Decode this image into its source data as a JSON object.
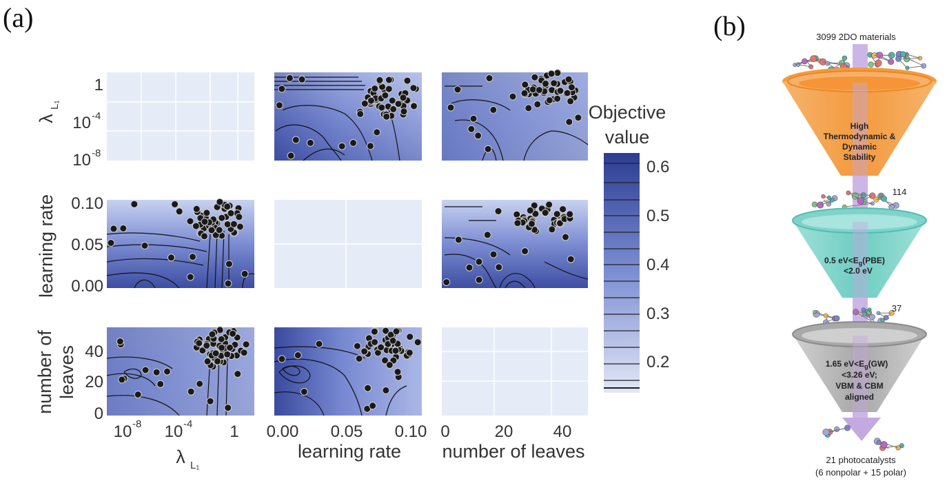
{
  "panels": {
    "a_label": "(a)",
    "b_label": "(b)"
  },
  "chart_data": {
    "type": "heatmap",
    "title": "",
    "params": [
      "λ_L1",
      "learning rate",
      "number of leaves"
    ],
    "y_labels": {
      "row0_main": "λ",
      "row0_sub": "L₁",
      "row1": "learning rate",
      "row2_line1": "number of",
      "row2_line2": "leaves"
    },
    "x_labels": {
      "col0_main": "λ",
      "col0_sub": "L₁",
      "col1": "learning rate",
      "col2": "number of leaves"
    },
    "ticks": {
      "lambda": [
        "1",
        "10",
        "-4",
        "10",
        "-8"
      ],
      "lambda_x": [
        "10",
        "-8",
        "10",
        "-4",
        "1"
      ],
      "learning_rate": [
        "0.10",
        "0.05",
        "0.00"
      ],
      "learning_rate_x": [
        "0.00",
        "0.05",
        "0.10"
      ],
      "leaves_y": [
        "40",
        "20",
        "0"
      ],
      "leaves_x": [
        "0",
        "20",
        "40"
      ]
    },
    "colorbar": {
      "title_line1": "Objective",
      "title_line2": "value",
      "ticks": [
        "0.6",
        "0.5",
        "0.4",
        "0.3",
        "0.2"
      ],
      "range": [
        0.15,
        0.63
      ]
    },
    "grid": "on",
    "colors": {
      "high": "#2f3f96",
      "mid": "#6f80cc",
      "low": "#dde4f5",
      "empty": "#e6ecf7",
      "point": "#1a1a1a"
    }
  },
  "funnel": {
    "top_label": "3099 2DO materials",
    "stage1": {
      "line1": "High",
      "line2": "Thermodynamic &",
      "line3": "Dynamic",
      "line4": "Stability",
      "color": "#f4a85a"
    },
    "count2": "114",
    "stage2": {
      "line1": "0.5 eV<E",
      "sub1": "g",
      "line1b": "(PBE)",
      "line2": "<2.0 eV",
      "color": "#8fd8d0"
    },
    "count3": "37",
    "stage3": {
      "line1": "1.65 eV<E",
      "sub1": "g",
      "line1b": "(GW)",
      "line2": "<3.26 eV;",
      "line3": "VBM & CBM",
      "line4": "aligned",
      "color": "#bdbdbd"
    },
    "result_line1": "21 photocatalysts",
    "result_line2": "(6 nonpolar + 15 polar)",
    "arrow_color": "#b79ad6"
  }
}
